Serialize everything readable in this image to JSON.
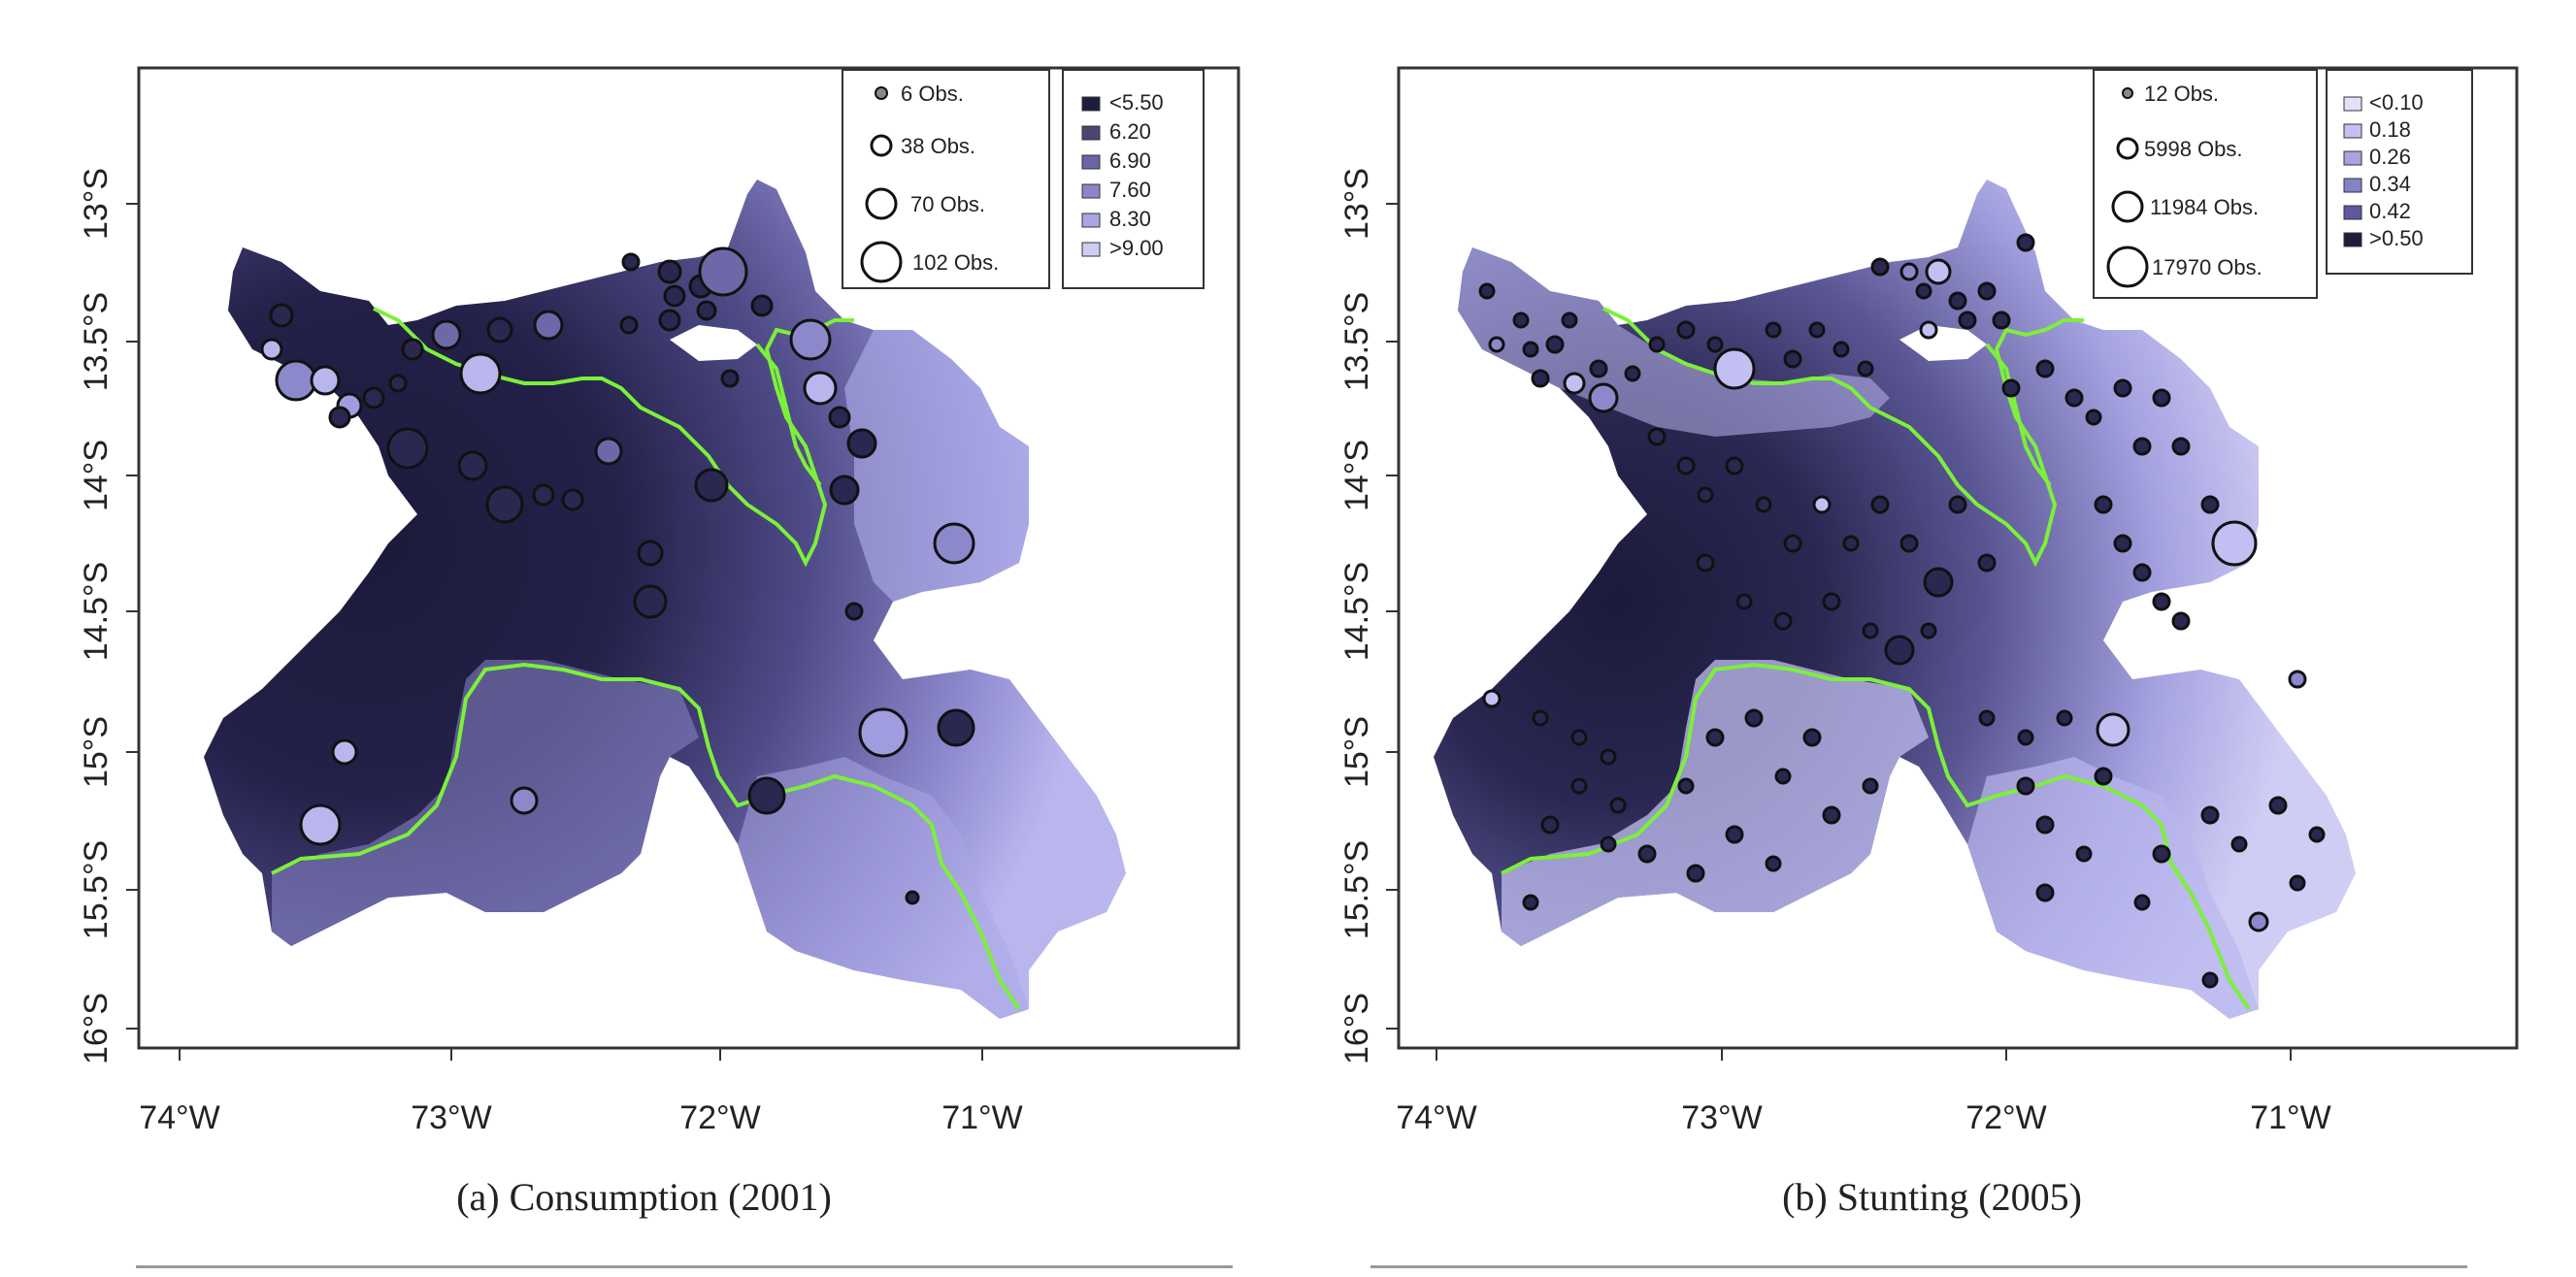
{
  "panels": [
    {
      "id": "a",
      "caption": "(a) Consumption (2001)",
      "x_ticks": [
        "74°W",
        "73°W",
        "72°W",
        "71°W"
      ],
      "y_ticks": [
        "13°S",
        "13.5°S",
        "14°S",
        "14.5°S",
        "15°S",
        "15.5°S",
        "16°S"
      ],
      "size_legend": [
        "6 Obs.",
        "38 Obs.",
        "70 Obs.",
        "102 Obs."
      ],
      "color_legend": [
        {
          "label": "<5.50",
          "color": "#1e1c3c"
        },
        {
          "label": "6.20",
          "color": "#4a4674"
        },
        {
          "label": "6.90",
          "color": "#6a65a4"
        },
        {
          "label": "7.60",
          "color": "#8a86c8"
        },
        {
          "label": "8.30",
          "color": "#a9a6e0"
        },
        {
          "label": ">9.00",
          "color": "#cfcdf2"
        }
      ]
    },
    {
      "id": "b",
      "caption": "(b) Stunting (2005)",
      "x_ticks": [
        "74°W",
        "73°W",
        "72°W",
        "71°W"
      ],
      "y_ticks": [
        "13°S",
        "13.5°S",
        "14°S",
        "14.5°S",
        "15°S",
        "15.5°S",
        "16°S"
      ],
      "size_legend": [
        "12 Obs.",
        "5998 Obs.",
        "11984 Obs.",
        "17970 Obs."
      ],
      "color_legend": [
        {
          "label": "<0.10",
          "color": "#e2e1f8"
        },
        {
          "label": "0.18",
          "color": "#c4c2f0"
        },
        {
          "label": "0.26",
          "color": "#a6a3e0"
        },
        {
          "label": "0.34",
          "color": "#8581c6"
        },
        {
          "label": "0.42",
          "color": "#5d58a0"
        },
        {
          "label": ">0.50",
          "color": "#1e1c3c"
        }
      ]
    }
  ],
  "colors": {
    "boundary": "#7cf03a",
    "frame": "#333333"
  }
}
